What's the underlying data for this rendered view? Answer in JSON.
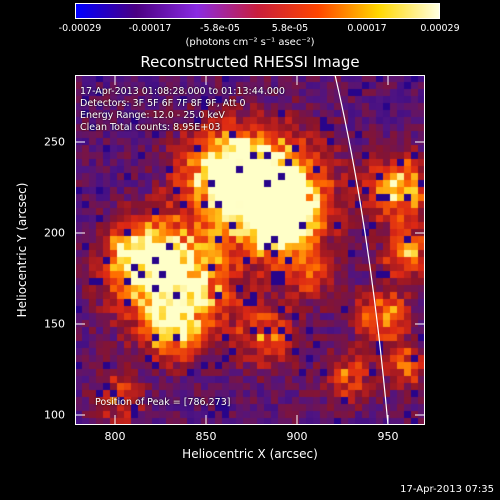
{
  "colorbar": {
    "ticks": [
      "-0.00029",
      "-0.00017",
      "-5.8e-05",
      "5.8e-05",
      "0.00017",
      "0.00029"
    ],
    "units": "(photons cm⁻² s⁻¹ asec⁻²)",
    "colors": [
      "#0000ff",
      "#4b0082",
      "#8a2be2",
      "#c81e3c",
      "#ff4500",
      "#ffd700",
      "#ffffe0"
    ]
  },
  "title": "Reconstructed RHESSI Image",
  "annotations": {
    "time": "17-Apr-2013 01:08:28.000 to 01:13:44.000",
    "detectors": "Detectors: 3F 5F 6F 7F 8F 9F, Att 0",
    "energy": "Energy Range: 12.0 - 25.0 keV",
    "clean": "Clean    Total counts: 8.95E+03",
    "peak": "Position of Peak = [786,273]"
  },
  "x_axis": {
    "label": "Heliocentric X (arcsec)",
    "ticks": [
      "800",
      "850",
      "900",
      "950"
    ],
    "range": [
      778,
      970
    ]
  },
  "y_axis": {
    "label": "Heliocentric Y (arcsec)",
    "ticks": [
      "100",
      "150",
      "200",
      "250"
    ],
    "range": [
      95,
      287
    ]
  },
  "footer": {
    "date": "17-Apr-2013 07:35"
  }
}
